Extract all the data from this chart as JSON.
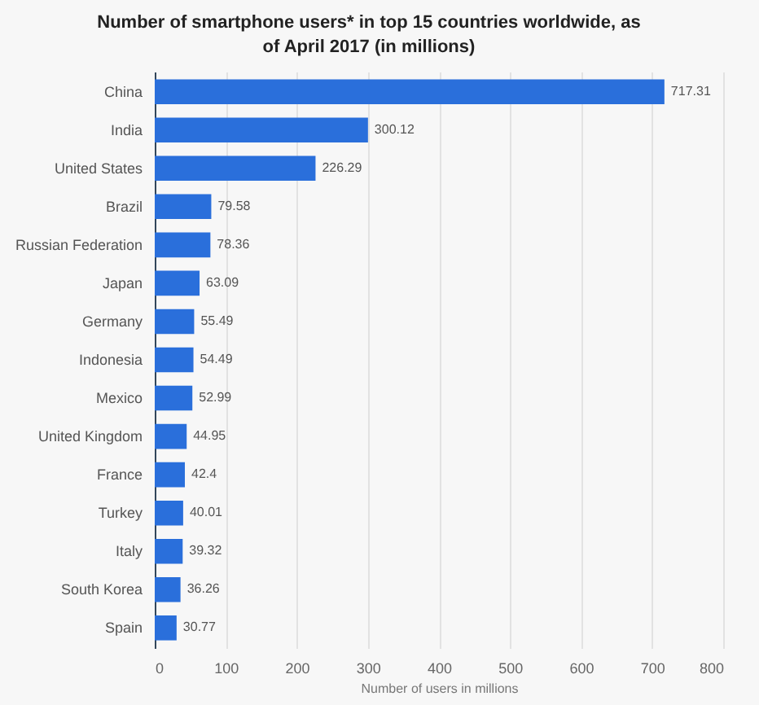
{
  "chart_data": {
    "type": "bar",
    "orientation": "horizontal",
    "title": "Number of smartphone users* in top 15 countries worldwide, as of April 2017 (in millions)",
    "xlabel": "Number of users in millions",
    "categories": [
      "China",
      "India",
      "United States",
      "Brazil",
      "Russian Federation",
      "Japan",
      "Germany",
      "Indonesia",
      "Mexico",
      "United Kingdom",
      "France",
      "Turkey",
      "Italy",
      "South Korea",
      "Spain"
    ],
    "values": [
      717.31,
      300.12,
      226.29,
      79.58,
      78.36,
      63.09,
      55.49,
      54.49,
      52.99,
      44.95,
      42.4,
      40.01,
      39.32,
      36.26,
      30.77
    ],
    "color": "#2a6fdb",
    "xlim": [
      0,
      800
    ],
    "xticks": [
      0,
      100,
      200,
      300,
      400,
      500,
      600,
      700,
      800
    ],
    "grid": "x",
    "data_labels": true
  }
}
